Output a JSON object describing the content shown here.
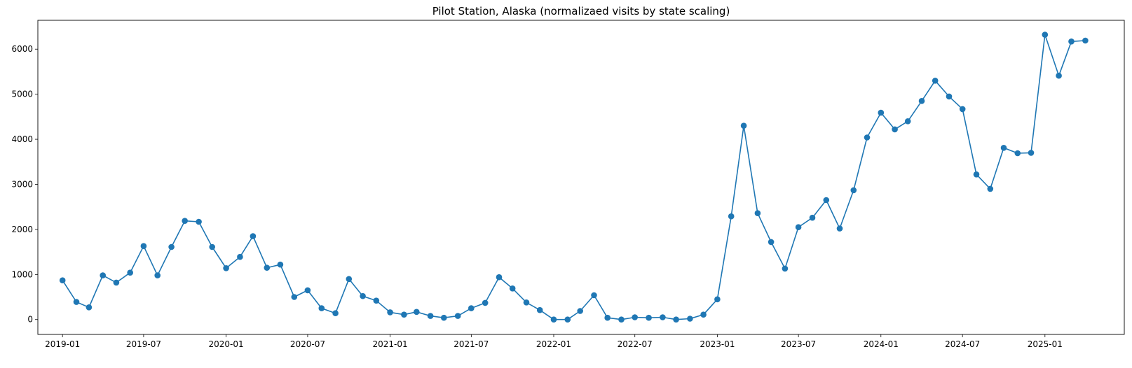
{
  "chart_data": {
    "type": "line",
    "title": "Pilot Station, Alaska (normalizaed visits by state scaling)",
    "xlabel": "",
    "ylabel": "",
    "color": "#1f77b4",
    "marker": "circle",
    "grid": false,
    "legend": "none",
    "xlim": [
      "2018-11-07",
      "2025-06-27"
    ],
    "ylim": [
      -330,
      6640
    ],
    "x_ticks": [
      "2019-01",
      "2019-07",
      "2020-01",
      "2020-07",
      "2021-01",
      "2021-07",
      "2022-01",
      "2022-07",
      "2023-01",
      "2023-07",
      "2024-01",
      "2024-07",
      "2025-01"
    ],
    "y_ticks": [
      0,
      1000,
      2000,
      3000,
      4000,
      5000,
      6000
    ],
    "x": [
      "2019-01",
      "2019-02",
      "2019-03",
      "2019-04",
      "2019-05",
      "2019-06",
      "2019-07",
      "2019-08",
      "2019-09",
      "2019-10",
      "2019-11",
      "2019-12",
      "2020-01",
      "2020-02",
      "2020-03",
      "2020-04",
      "2020-05",
      "2020-06",
      "2020-07",
      "2020-08",
      "2020-09",
      "2020-10",
      "2020-11",
      "2020-12",
      "2021-01",
      "2021-02",
      "2021-03",
      "2021-04",
      "2021-05",
      "2021-06",
      "2021-07",
      "2021-08",
      "2021-09",
      "2021-10",
      "2021-11",
      "2021-12",
      "2022-01",
      "2022-02",
      "2022-03",
      "2022-04",
      "2022-05",
      "2022-06",
      "2022-07",
      "2022-08",
      "2022-09",
      "2022-10",
      "2022-11",
      "2022-12",
      "2023-01",
      "2023-02",
      "2023-03",
      "2023-04",
      "2023-05",
      "2023-06",
      "2023-07",
      "2023-08",
      "2023-09",
      "2023-10",
      "2023-11",
      "2023-12",
      "2024-01",
      "2024-02",
      "2024-03",
      "2024-04",
      "2024-05",
      "2024-06",
      "2024-07",
      "2024-08",
      "2024-09",
      "2024-10",
      "2024-11",
      "2024-12",
      "2025-01",
      "2025-02",
      "2025-03",
      "2025-04"
    ],
    "values": [
      870,
      390,
      270,
      980,
      820,
      1040,
      1630,
      980,
      1610,
      2190,
      2170,
      1610,
      1140,
      1390,
      1850,
      1150,
      1220,
      500,
      650,
      250,
      140,
      900,
      520,
      420,
      160,
      110,
      170,
      80,
      40,
      80,
      250,
      370,
      940,
      690,
      380,
      210,
      0,
      0,
      190,
      540,
      40,
      0,
      50,
      40,
      50,
      0,
      20,
      110,
      450,
      2290,
      4300,
      2360,
      1720,
      1130,
      2050,
      2260,
      2650,
      2020,
      2870,
      4040,
      4590,
      4220,
      4400,
      4850,
      5300,
      4950,
      4670,
      3220,
      2900,
      3810,
      3690,
      3700,
      6320,
      5410,
      6170,
      6190
    ]
  }
}
